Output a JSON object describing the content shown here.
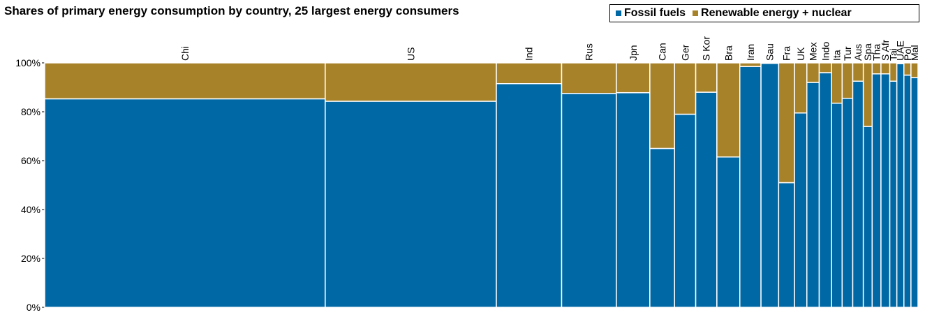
{
  "chart_data": {
    "type": "bar",
    "subtype": "marimekko-stacked-100",
    "title": "Shares of primary energy consumption by country, 25 largest energy consumers",
    "ylim": [
      0,
      100
    ],
    "y_ticks": [
      "0%",
      "20%",
      "40%",
      "60%",
      "80%",
      "100%"
    ],
    "grid": false,
    "legend_position": "top-right",
    "categories": [
      "Chi",
      "US",
      "Ind",
      "Rus",
      "Jpn",
      "Can",
      "Ger",
      "S Kor",
      "Bra",
      "Iran",
      "Sau",
      "Fra",
      "UK",
      "Mex",
      "Indo",
      "Ita",
      "Tur",
      "Aus",
      "Spa",
      "Tha",
      "S Afr",
      "Tai",
      "UAE",
      "Pol",
      "Mal"
    ],
    "widths": [
      159,
      97,
      37,
      31,
      19,
      14,
      12,
      12,
      13,
      12,
      10,
      9,
      7,
      7,
      7,
      6,
      6,
      6,
      5,
      5,
      5,
      4,
      4,
      4,
      4
    ],
    "series": [
      {
        "name": "Fossil fuels",
        "color": "#0068A5",
        "values": [
          85.3,
          84.3,
          91.5,
          87.5,
          87.8,
          65.0,
          79.0,
          88.0,
          61.5,
          98.5,
          99.8,
          51.0,
          79.5,
          92.0,
          96.0,
          83.5,
          85.5,
          92.5,
          74.0,
          95.5,
          95.5,
          92.5,
          99.7,
          95.0,
          94.0
        ]
      },
      {
        "name": "Renewable energy + nuclear",
        "color": "#A88228",
        "values": [
          14.7,
          15.7,
          8.5,
          12.5,
          12.2,
          35.0,
          21.0,
          12.0,
          38.5,
          1.5,
          0.2,
          49.0,
          20.5,
          8.0,
          4.0,
          16.5,
          14.5,
          7.5,
          26.0,
          4.5,
          4.5,
          7.5,
          0.3,
          5.0,
          6.0
        ]
      }
    ]
  }
}
